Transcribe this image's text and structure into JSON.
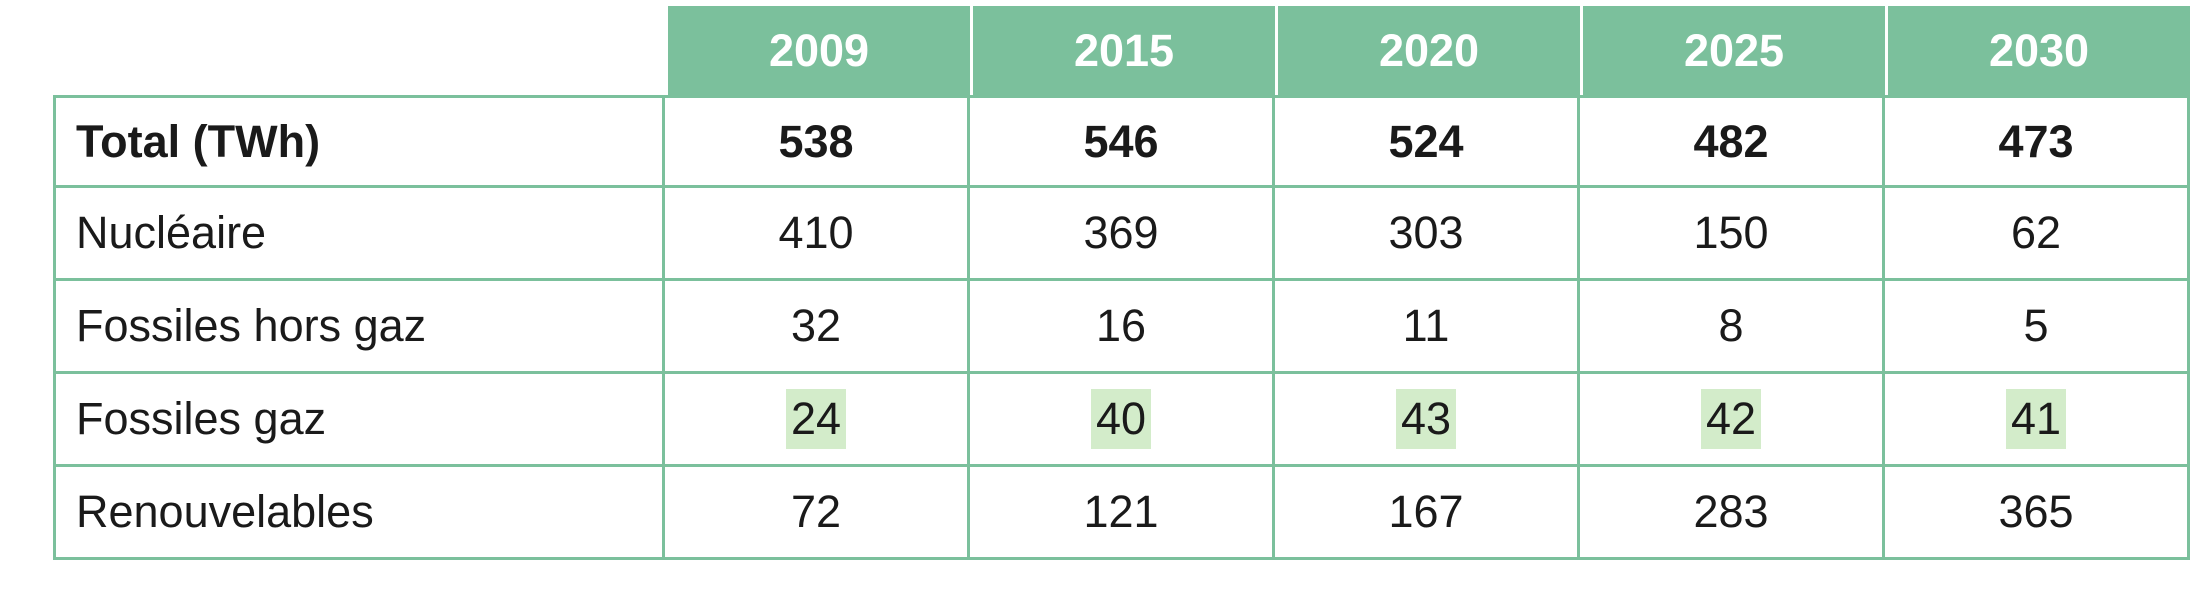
{
  "table": {
    "header": [
      "2009",
      "2015",
      "2020",
      "2025",
      "2030"
    ],
    "rows": [
      [
        "Total (TWh)",
        538,
        546,
        524,
        482,
        473
      ],
      [
        "Nucléaire",
        410,
        369,
        303,
        150,
        62
      ],
      [
        "Fossiles hors gaz",
        32,
        16,
        11,
        8,
        5
      ],
      [
        "Fossiles gaz",
        24,
        40,
        43,
        42,
        41
      ],
      [
        "Renouvelables",
        72,
        121,
        167,
        283,
        365
      ]
    ]
  }
}
